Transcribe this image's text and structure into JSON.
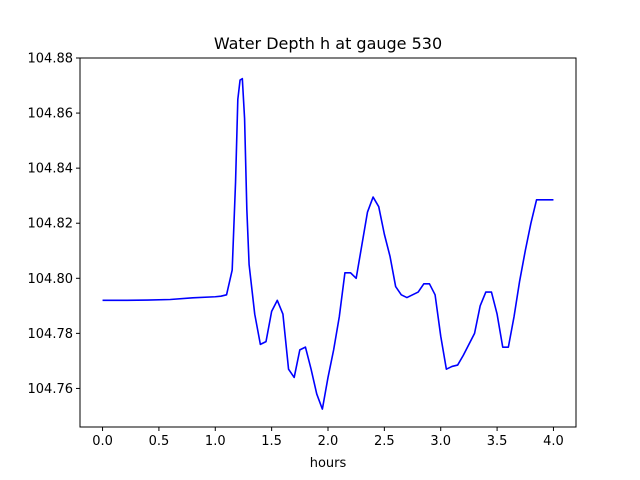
{
  "chart_data": {
    "type": "line",
    "title": "Water Depth h at gauge 530",
    "xlabel": "hours",
    "ylabel": "",
    "xlim": [
      -0.2,
      4.2
    ],
    "ylim": [
      104.746,
      104.88
    ],
    "xticks": [
      0.0,
      0.5,
      1.0,
      1.5,
      2.0,
      2.5,
      3.0,
      3.5,
      4.0
    ],
    "xtick_labels": [
      "0.0",
      "0.5",
      "1.0",
      "1.5",
      "2.0",
      "2.5",
      "3.0",
      "3.5",
      "4.0"
    ],
    "yticks": [
      104.76,
      104.78,
      104.8,
      104.82,
      104.84,
      104.86,
      104.88
    ],
    "ytick_labels": [
      "104.76",
      "104.78",
      "104.80",
      "104.82",
      "104.84",
      "104.86",
      "104.88"
    ],
    "grid": false,
    "series": [
      {
        "color": "#0000ff",
        "x": [
          0.0,
          0.2,
          0.4,
          0.6,
          0.8,
          1.0,
          1.05,
          1.1,
          1.15,
          1.18,
          1.2,
          1.22,
          1.24,
          1.26,
          1.28,
          1.3,
          1.35,
          1.4,
          1.45,
          1.5,
          1.55,
          1.6,
          1.65,
          1.7,
          1.75,
          1.8,
          1.85,
          1.9,
          1.95,
          2.0,
          2.05,
          2.1,
          2.15,
          2.2,
          2.25,
          2.3,
          2.35,
          2.4,
          2.45,
          2.5,
          2.55,
          2.6,
          2.65,
          2.7,
          2.75,
          2.8,
          2.85,
          2.9,
          2.95,
          3.0,
          3.05,
          3.1,
          3.15,
          3.2,
          3.25,
          3.3,
          3.35,
          3.4,
          3.45,
          3.5,
          3.55,
          3.6,
          3.65,
          3.7,
          3.75,
          3.8,
          3.85,
          3.9,
          3.95,
          4.0
        ],
        "y": [
          104.792,
          104.792,
          104.7921,
          104.7923,
          104.7929,
          104.7933,
          104.7935,
          104.794,
          104.803,
          104.835,
          104.865,
          104.872,
          104.8725,
          104.858,
          104.825,
          104.805,
          104.787,
          104.776,
          104.777,
          104.788,
          104.792,
          104.787,
          104.767,
          104.764,
          104.774,
          104.775,
          104.767,
          104.758,
          104.7525,
          104.764,
          104.774,
          104.786,
          104.802,
          104.802,
          104.8,
          104.812,
          104.824,
          104.8295,
          104.826,
          104.816,
          104.808,
          104.797,
          104.794,
          104.793,
          104.794,
          104.795,
          104.798,
          104.798,
          104.794,
          104.779,
          104.767,
          104.768,
          104.7685,
          104.772,
          104.776,
          104.78,
          104.79,
          104.795,
          104.795,
          104.787,
          104.775,
          104.775,
          104.786,
          104.799,
          104.81,
          104.82,
          104.8285,
          104.8285,
          104.8285,
          104.8285
        ]
      }
    ]
  }
}
